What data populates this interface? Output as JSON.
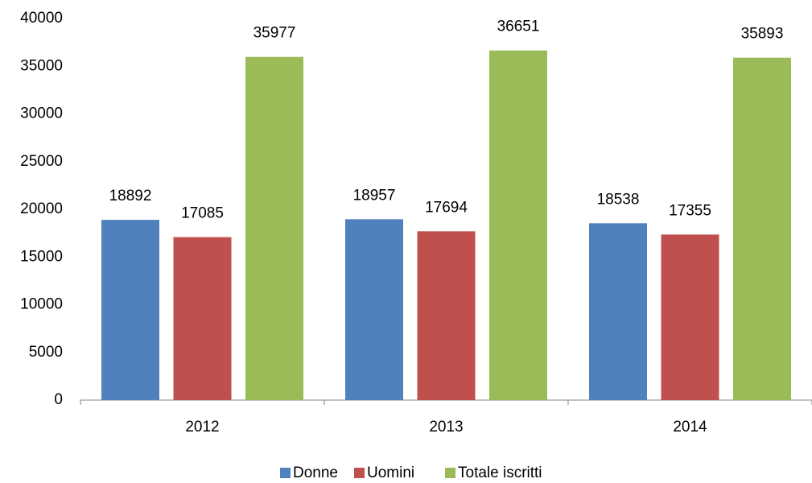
{
  "chart_data": {
    "type": "bar",
    "categories": [
      "2012",
      "2013",
      "2014"
    ],
    "series": [
      {
        "name": "Donne",
        "color": "#4f81bd",
        "values": [
          18892,
          18957,
          18538
        ]
      },
      {
        "name": "Uomini",
        "color": "#c0504d",
        "values": [
          17085,
          17694,
          17355
        ]
      },
      {
        "name": "Totale iscritti",
        "color": "#9bbb59",
        "values": [
          35977,
          36651,
          35893
        ]
      }
    ],
    "ylim": [
      0,
      40000
    ],
    "yticks": [
      0,
      5000,
      10000,
      15000,
      20000,
      25000,
      30000,
      35000,
      40000
    ],
    "grid": false,
    "legend": "bottom"
  }
}
